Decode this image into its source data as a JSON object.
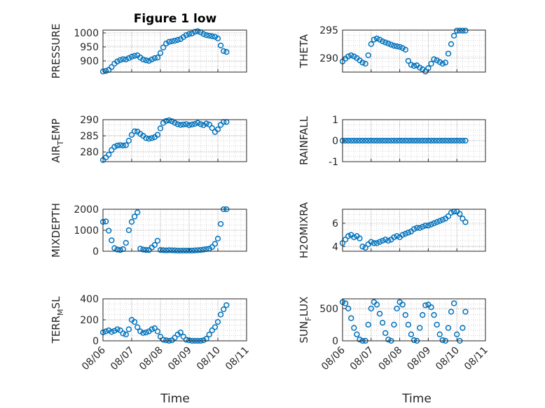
{
  "figure": {
    "title": "Figure 1 low",
    "marker_color": "#0072BD",
    "grid": "dotted minor grid on",
    "x_axis_label": "Time",
    "x_tick_labels": [
      "08/06",
      "08/07",
      "08/08",
      "08/09",
      "08/10",
      "08/11"
    ]
  },
  "chart_data": [
    {
      "type": "scatter",
      "ylabel": "PRESSURE",
      "title": "Figure 1 low",
      "ylim": [
        860,
        1010
      ],
      "yticks": [
        900,
        950,
        1000
      ],
      "xlim": [
        0,
        5
      ],
      "x": [
        0.0,
        0.1,
        0.2,
        0.3,
        0.4,
        0.5,
        0.6,
        0.7,
        0.8,
        0.9,
        1.0,
        1.1,
        1.2,
        1.3,
        1.4,
        1.5,
        1.6,
        1.7,
        1.8,
        1.9,
        2.0,
        2.1,
        2.2,
        2.3,
        2.4,
        2.5,
        2.6,
        2.7,
        2.8,
        2.9,
        3.0,
        3.1,
        3.2,
        3.3,
        3.4,
        3.5,
        3.6,
        3.7,
        3.8,
        3.9,
        4.0,
        4.1,
        4.2,
        4.3
      ],
      "y": [
        862,
        864,
        868,
        878,
        890,
        898,
        903,
        906,
        905,
        910,
        915,
        918,
        920,
        912,
        905,
        902,
        900,
        905,
        910,
        912,
        928,
        948,
        962,
        968,
        970,
        972,
        975,
        978,
        985,
        992,
        996,
        998,
        1004,
        1006,
        1002,
        996,
        992,
        990,
        988,
        986,
        980,
        955,
        935,
        932
      ]
    },
    {
      "type": "scatter",
      "ylabel": "THETA",
      "ylim": [
        287.5,
        295
      ],
      "yticks": [
        290,
        295
      ],
      "xlim": [
        0,
        5
      ],
      "x": [
        0.0,
        0.1,
        0.2,
        0.3,
        0.4,
        0.5,
        0.6,
        0.7,
        0.8,
        0.9,
        1.0,
        1.1,
        1.2,
        1.3,
        1.4,
        1.5,
        1.6,
        1.7,
        1.8,
        1.9,
        2.0,
        2.1,
        2.2,
        2.3,
        2.4,
        2.5,
        2.6,
        2.7,
        2.8,
        2.9,
        3.0,
        3.1,
        3.2,
        3.3,
        3.4,
        3.5,
        3.6,
        3.7,
        3.8,
        3.9,
        4.0,
        4.1,
        4.2,
        4.3
      ],
      "y": [
        289.4,
        289.9,
        290.3,
        290.5,
        290.3,
        290.0,
        289.6,
        289.2,
        289.0,
        290.5,
        292.5,
        293.3,
        293.5,
        293.3,
        293.0,
        292.8,
        292.6,
        292.4,
        292.2,
        292.1,
        292.0,
        291.8,
        291.5,
        289.5,
        288.8,
        288.6,
        288.7,
        288.3,
        288.0,
        287.6,
        288.2,
        289.0,
        289.8,
        289.6,
        289.3,
        289.0,
        289.2,
        290.8,
        292.5,
        294.0,
        294.9,
        294.9,
        294.9,
        294.9
      ]
    },
    {
      "type": "scatter",
      "ylabel": "AIR_TEMP",
      "ylim": [
        277,
        290
      ],
      "yticks": [
        280,
        285,
        290
      ],
      "xlim": [
        0,
        5
      ],
      "x": [
        0.0,
        0.1,
        0.2,
        0.3,
        0.4,
        0.5,
        0.6,
        0.7,
        0.8,
        0.9,
        1.0,
        1.1,
        1.2,
        1.3,
        1.4,
        1.5,
        1.6,
        1.7,
        1.8,
        1.9,
        2.0,
        2.1,
        2.2,
        2.3,
        2.4,
        2.5,
        2.6,
        2.7,
        2.8,
        2.9,
        3.0,
        3.1,
        3.2,
        3.3,
        3.4,
        3.5,
        3.6,
        3.7,
        3.8,
        3.9,
        4.0,
        4.1,
        4.2,
        4.3
      ],
      "y": [
        277.5,
        278.3,
        279.2,
        280.6,
        281.6,
        282.0,
        282.1,
        282.0,
        282.1,
        283.5,
        285.3,
        286.4,
        286.3,
        285.6,
        285.0,
        284.3,
        284.1,
        284.3,
        284.6,
        285.3,
        287.3,
        289.0,
        289.6,
        289.8,
        289.5,
        289.0,
        288.6,
        288.4,
        288.5,
        288.6,
        288.3,
        288.5,
        288.7,
        289.0,
        288.6,
        288.3,
        288.8,
        288.5,
        287.4,
        286.2,
        287.0,
        288.4,
        289.3,
        289.3
      ]
    },
    {
      "type": "scatter",
      "ylabel": "RAINFALL",
      "ylim": [
        -1,
        1
      ],
      "yticks": [
        -1,
        0,
        1
      ],
      "xlim": [
        0,
        5
      ],
      "x": [
        0.0,
        0.1,
        0.2,
        0.3,
        0.4,
        0.5,
        0.6,
        0.7,
        0.8,
        0.9,
        1.0,
        1.1,
        1.2,
        1.3,
        1.4,
        1.5,
        1.6,
        1.7,
        1.8,
        1.9,
        2.0,
        2.1,
        2.2,
        2.3,
        2.4,
        2.5,
        2.6,
        2.7,
        2.8,
        2.9,
        3.0,
        3.1,
        3.2,
        3.3,
        3.4,
        3.5,
        3.6,
        3.7,
        3.8,
        3.9,
        4.0,
        4.1,
        4.2,
        4.3
      ],
      "y": [
        0,
        0,
        0,
        0,
        0,
        0,
        0,
        0,
        0,
        0,
        0,
        0,
        0,
        0,
        0,
        0,
        0,
        0,
        0,
        0,
        0,
        0,
        0,
        0,
        0,
        0,
        0,
        0,
        0,
        0,
        0,
        0,
        0,
        0,
        0,
        0,
        0,
        0,
        0,
        0,
        0,
        0,
        0,
        0
      ]
    },
    {
      "type": "scatter",
      "ylabel": "MIXDEPTH",
      "ylim": [
        0,
        2000
      ],
      "yticks": [
        0,
        1000,
        2000
      ],
      "xlim": [
        0,
        5
      ],
      "x": [
        0.0,
        0.1,
        0.2,
        0.3,
        0.4,
        0.5,
        0.6,
        0.7,
        0.8,
        0.9,
        1.0,
        1.1,
        1.2,
        1.3,
        1.4,
        1.5,
        1.6,
        1.7,
        1.8,
        1.9,
        2.0,
        2.1,
        2.2,
        2.3,
        2.4,
        2.5,
        2.6,
        2.7,
        2.8,
        2.9,
        3.0,
        3.1,
        3.2,
        3.3,
        3.4,
        3.5,
        3.6,
        3.7,
        3.8,
        3.9,
        4.0,
        4.1,
        4.2,
        4.3
      ],
      "y": [
        1400,
        1420,
        980,
        520,
        150,
        80,
        60,
        100,
        400,
        1000,
        1400,
        1650,
        1850,
        120,
        80,
        60,
        60,
        180,
        300,
        500,
        60,
        50,
        40,
        50,
        45,
        40,
        30,
        30,
        30,
        30,
        30,
        30,
        40,
        50,
        60,
        80,
        100,
        120,
        200,
        350,
        600,
        1300,
        2000,
        2000
      ]
    },
    {
      "type": "scatter",
      "ylabel": "H2OMIXRA",
      "ylim": [
        3.6,
        7.2
      ],
      "yticks": [
        4,
        6
      ],
      "xlim": [
        0,
        5
      ],
      "x": [
        0.0,
        0.1,
        0.2,
        0.3,
        0.4,
        0.5,
        0.6,
        0.7,
        0.8,
        0.9,
        1.0,
        1.1,
        1.2,
        1.3,
        1.4,
        1.5,
        1.6,
        1.7,
        1.8,
        1.9,
        2.0,
        2.1,
        2.2,
        2.3,
        2.4,
        2.5,
        2.6,
        2.7,
        2.8,
        2.9,
        3.0,
        3.1,
        3.2,
        3.3,
        3.4,
        3.5,
        3.6,
        3.7,
        3.8,
        3.9,
        4.0,
        4.1,
        4.2,
        4.3
      ],
      "y": [
        4.3,
        4.6,
        4.9,
        5.0,
        4.8,
        4.9,
        4.7,
        4.0,
        3.9,
        4.2,
        4.4,
        4.3,
        4.3,
        4.4,
        4.5,
        4.6,
        4.5,
        4.6,
        4.8,
        4.9,
        4.8,
        5.0,
        5.1,
        5.2,
        5.3,
        5.5,
        5.6,
        5.6,
        5.7,
        5.8,
        5.8,
        5.9,
        6.0,
        6.1,
        6.2,
        6.3,
        6.4,
        6.6,
        6.9,
        7.0,
        7.0,
        6.8,
        6.4,
        6.1
      ]
    },
    {
      "type": "scatter",
      "ylabel": "TERR_MSL",
      "ylim": [
        0,
        400
      ],
      "yticks": [
        0,
        200,
        400
      ],
      "xlim": [
        0,
        5
      ],
      "x": [
        0.0,
        0.1,
        0.2,
        0.3,
        0.4,
        0.5,
        0.6,
        0.7,
        0.8,
        0.9,
        1.0,
        1.1,
        1.2,
        1.3,
        1.4,
        1.5,
        1.6,
        1.7,
        1.8,
        1.9,
        2.0,
        2.1,
        2.2,
        2.3,
        2.4,
        2.5,
        2.6,
        2.7,
        2.8,
        2.9,
        3.0,
        3.1,
        3.2,
        3.3,
        3.4,
        3.5,
        3.6,
        3.7,
        3.8,
        3.9,
        4.0,
        4.1,
        4.2,
        4.3
      ],
      "y": [
        80,
        90,
        100,
        85,
        95,
        110,
        100,
        70,
        60,
        110,
        200,
        180,
        130,
        90,
        75,
        80,
        90,
        110,
        120,
        90,
        40,
        10,
        5,
        0,
        5,
        30,
        60,
        80,
        40,
        10,
        5,
        0,
        0,
        0,
        0,
        5,
        20,
        60,
        100,
        130,
        180,
        250,
        300,
        340
      ]
    },
    {
      "type": "scatter",
      "ylabel": "SUN_FLUX",
      "ylim": [
        0,
        650
      ],
      "yticks": [
        0,
        500
      ],
      "xlim": [
        0,
        5
      ],
      "x": [
        0.0,
        0.1,
        0.2,
        0.3,
        0.4,
        0.5,
        0.6,
        0.7,
        0.8,
        0.9,
        1.0,
        1.1,
        1.2,
        1.3,
        1.4,
        1.5,
        1.6,
        1.7,
        1.8,
        1.9,
        2.0,
        2.1,
        2.2,
        2.3,
        2.4,
        2.5,
        2.6,
        2.7,
        2.8,
        2.9,
        3.0,
        3.1,
        3.2,
        3.3,
        3.4,
        3.5,
        3.6,
        3.7,
        3.8,
        3.9,
        4.0,
        4.1,
        4.2,
        4.3
      ],
      "y": [
        600,
        580,
        500,
        350,
        200,
        100,
        20,
        0,
        0,
        250,
        500,
        600,
        560,
        420,
        280,
        120,
        20,
        0,
        250,
        500,
        600,
        560,
        400,
        250,
        100,
        10,
        0,
        200,
        400,
        550,
        560,
        520,
        400,
        250,
        100,
        10,
        0,
        200,
        450,
        580,
        100,
        0,
        200,
        450
      ]
    }
  ]
}
